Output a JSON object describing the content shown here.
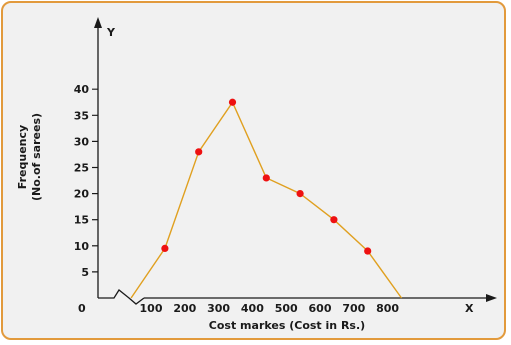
{
  "chart_data": {
    "type": "line",
    "title": "",
    "xlabel": "Cost markes (Cost in Rs.)",
    "ylabel_lines": [
      "Frequency",
      "(No.of sarees)"
    ],
    "x_axis_letter": "X",
    "y_axis_letter": "Y",
    "origin_label": "0",
    "x_tick_labels": [
      "100",
      "200",
      "300",
      "400",
      "500",
      "600",
      "700",
      "800"
    ],
    "y_tick_labels": [
      "5",
      "10",
      "15",
      "20",
      "25",
      "30",
      "35",
      "40"
    ],
    "x_ticks": [
      100,
      200,
      300,
      400,
      500,
      600,
      700,
      800
    ],
    "y_ticks": [
      5,
      10,
      15,
      20,
      25,
      30,
      35,
      40
    ],
    "xlim": [
      50,
      900
    ],
    "ylim": [
      0,
      43
    ],
    "axis_break": true,
    "series": [
      {
        "x": [
          50,
          150,
          250,
          350,
          450,
          550,
          650,
          750,
          850
        ],
        "y": [
          0,
          9.5,
          28,
          37.5,
          23,
          20,
          15,
          9,
          0
        ]
      }
    ],
    "line_color": "#e0a020",
    "marker_color": "#ee1111",
    "marker_indices": [
      1,
      2,
      3,
      4,
      5,
      6,
      7
    ]
  }
}
